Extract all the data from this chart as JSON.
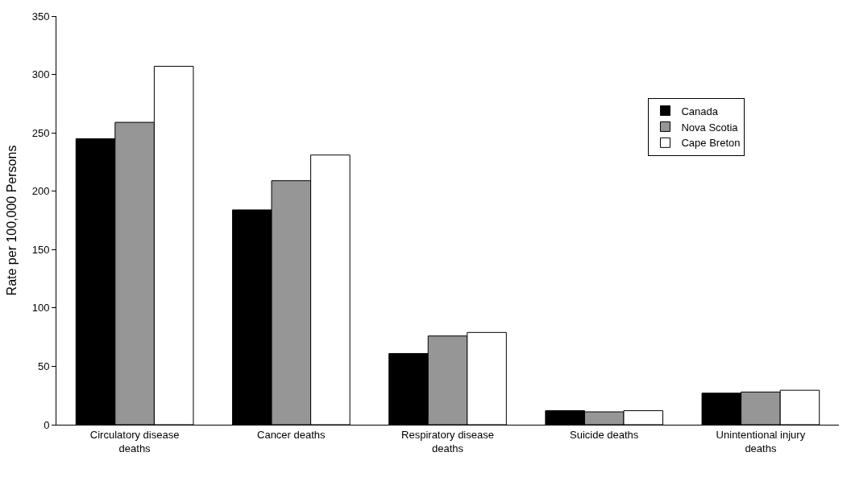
{
  "chart_data": {
    "type": "bar",
    "ylabel": "Rate per 100,000 Persons",
    "categories": [
      "Circulatory disease deaths",
      "Cancer deaths",
      "Respiratory disease deaths",
      "Suicide deaths",
      "Unintentional injury deaths"
    ],
    "series": [
      {
        "name": "Canada",
        "color": "#000000",
        "values": [
          245,
          184,
          61,
          12,
          27
        ]
      },
      {
        "name": "Nova Scotia",
        "color": "#969696",
        "values": [
          259,
          209,
          76,
          11,
          28
        ]
      },
      {
        "name": "Cape Breton",
        "color": "#ffffff",
        "values": [
          307,
          231,
          79,
          12,
          29.5
        ]
      }
    ],
    "ylim": [
      0,
      350
    ],
    "yticks": [
      0,
      50,
      100,
      150,
      200,
      250,
      300,
      350
    ],
    "legend": "top right"
  }
}
